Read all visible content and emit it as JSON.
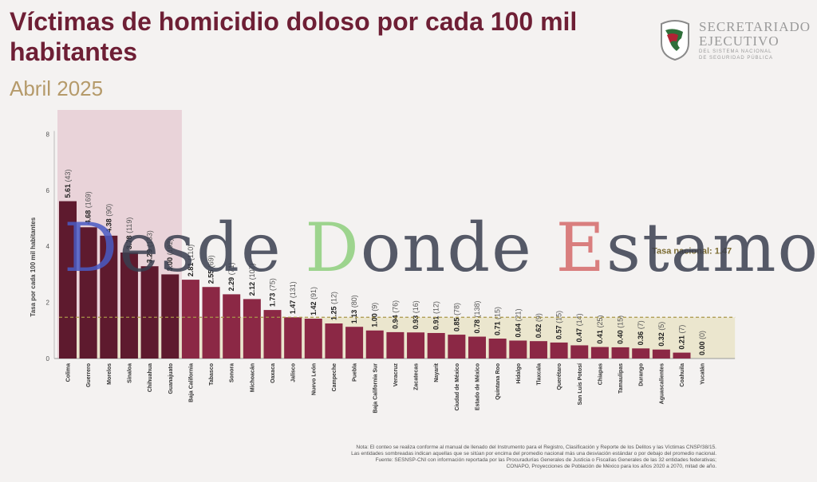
{
  "title": "Víctimas de homicidio doloso por cada 100 mil habitantes",
  "subtitle": "Abril 2025",
  "logo": {
    "line1": "SECRETARIADO",
    "line2": "EJECUTIVO",
    "line3": "DEL SISTEMA NACIONAL",
    "line4": "DE SEGURIDAD PÚBLICA"
  },
  "watermark": {
    "p1": "D",
    "p2": "esde ",
    "p3": "D",
    "p4": "onde ",
    "p5": "E",
    "p6": "stamos"
  },
  "notes": [
    "Nota: El conteo se realiza conforme al manual de llenado del Instrumento para el Registro, Clasificación y Reporte de los Delitos y las Víctimas CNSP/38/15.",
    "Las entidades sombreadas indican aquellas que se sitúan por encima del promedio nacional más una desviación estándar o por debajo del promedio nacional.",
    "Fuente: SESNSP-CNI con información reportada por las Procuradurías Generales de Justicia o Fiscalías Generales de las 32 entidades federativas;",
    "CONAPO, Proyecciones de Población de México para los años 2020 a 2070, mitad de año."
  ],
  "colors": {
    "dark_bar": "#5e1a2e",
    "bar": "#8b2845",
    "highlight": "#e6c8d0",
    "band": "#e9e4c8",
    "national_line": "#a99648",
    "title": "#6e1f35",
    "subtitle": "#b59a6a"
  },
  "chart_data": {
    "type": "bar",
    "ylabel": "Tasa por cada 100 mil habitantes",
    "ylim": [
      0,
      8
    ],
    "yticks": [
      "0",
      "2",
      "4",
      "6",
      "8"
    ],
    "national_rate": 1.47,
    "national_label": "Tasa nacional: 1.47",
    "highlighted_count": 6,
    "categories": [
      "Colima",
      "Guerrero",
      "Morelos",
      "Sinaloa",
      "Chihuahua",
      "Guanajuato",
      "Baja California",
      "Tabasco",
      "Sonora",
      "Michoacán",
      "Oaxaca",
      "Jalisco",
      "Nuevo León",
      "Campeche",
      "Puebla",
      "Baja California Sur",
      "Veracruz",
      "Zacatecas",
      "Nayarit",
      "Ciudad de México",
      "Estado de México",
      "Quintana Roo",
      "Hidalgo",
      "Tlaxcala",
      "Querétaro",
      "San Luis Potosí",
      "Chiapas",
      "Tamaulipas",
      "Durango",
      "Aguascalientes",
      "Coahuila",
      "Yucatán"
    ],
    "values": [
      5.61,
      4.68,
      4.38,
      3.78,
      3.29,
      3.0,
      2.81,
      2.55,
      2.29,
      2.12,
      1.73,
      1.47,
      1.42,
      1.25,
      1.13,
      1.0,
      0.94,
      0.93,
      0.91,
      0.85,
      0.78,
      0.71,
      0.64,
      0.62,
      0.57,
      0.47,
      0.41,
      0.4,
      0.36,
      0.32,
      0.21,
      0.0
    ],
    "value_labels": [
      "5.61",
      "4.68",
      "4.38",
      "3.78",
      "3.29",
      "3.00",
      "2.81",
      "2.55",
      "2.29",
      "2.12",
      "1.73",
      "1.47",
      "1.42",
      "1.25",
      "1.13",
      "1.00",
      "0.94",
      "0.93",
      "0.91",
      "0.85",
      "0.78",
      "0.71",
      "0.64",
      "0.62",
      "0.57",
      "0.47",
      "0.41",
      "0.40",
      "0.36",
      "0.32",
      "0.21",
      "0.00"
    ],
    "counts": [
      "(43)",
      "(169)",
      "(90)",
      "(119)",
      "(133)",
      "(192)",
      "(110)",
      "(69)",
      "(71)",
      "(107)",
      "(75)",
      "(131)",
      "(91)",
      "(12)",
      "(80)",
      "(9)",
      "(76)",
      "(16)",
      "(12)",
      "(78)",
      "(138)",
      "(15)",
      "(21)",
      "(9)",
      "(15)",
      "(14)",
      "(25)",
      "(15)",
      "(7)",
      "(5)",
      "(7)",
      "(0)"
    ]
  }
}
